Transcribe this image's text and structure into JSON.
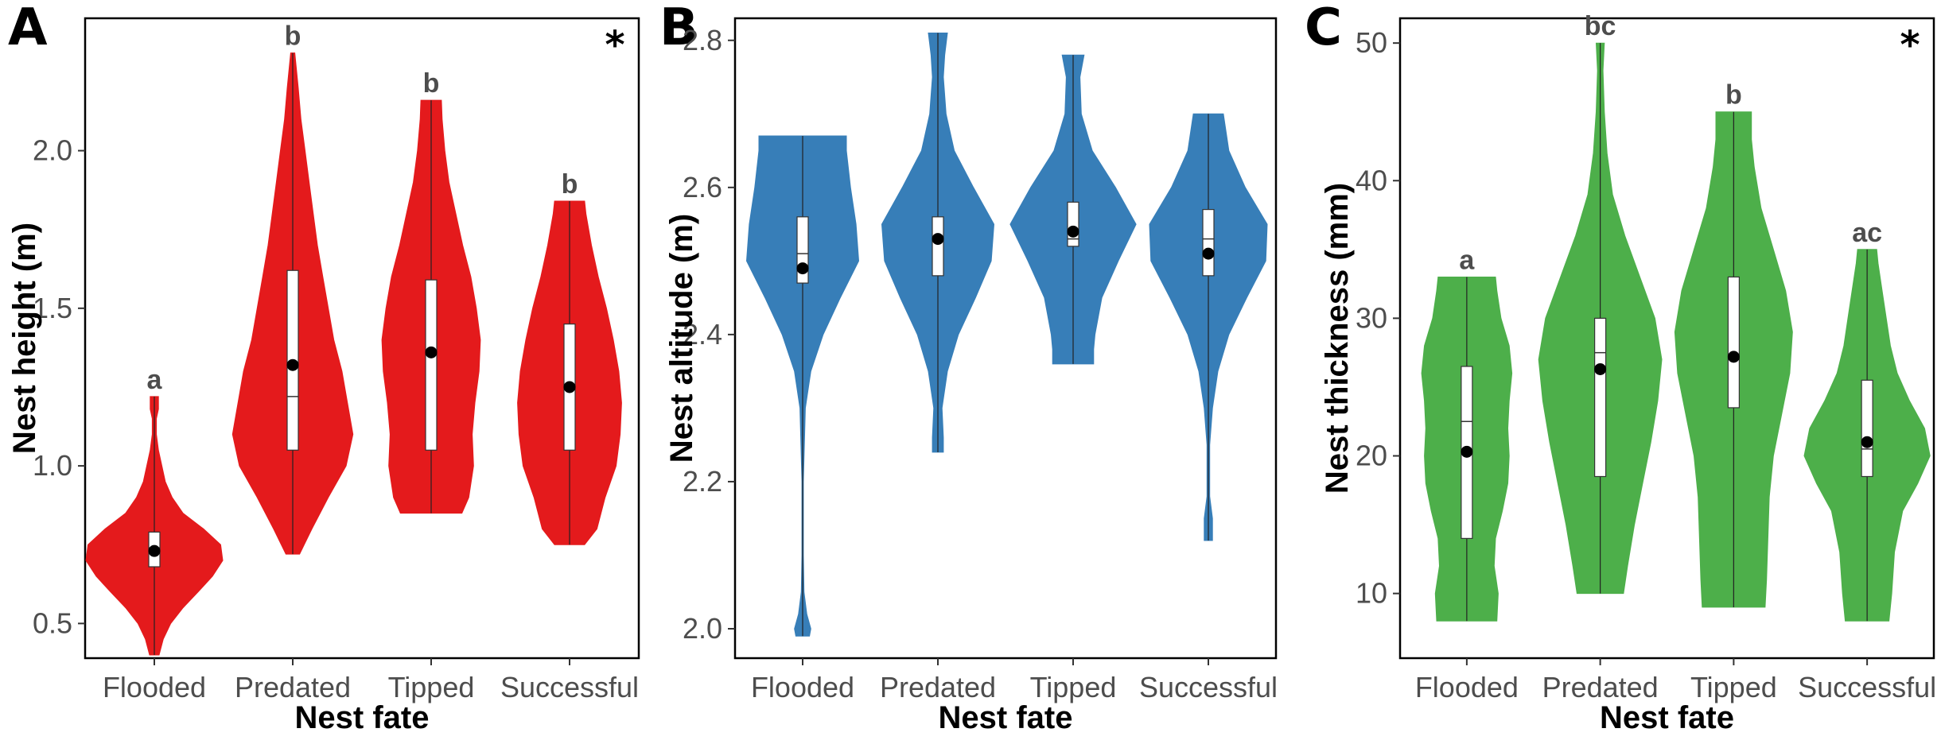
{
  "figure": {
    "panels": [
      "A",
      "B",
      "C"
    ]
  },
  "chart_data": [
    {
      "panel_label": "A",
      "type": "violin",
      "color": "#e41a1c",
      "xlabel": "Nest fate",
      "ylabel": "Nest height (m)",
      "categories": [
        "Flooded",
        "Predated",
        "Tipped",
        "Successful"
      ],
      "ylim": [
        0.39,
        2.42
      ],
      "yticks": [
        0.5,
        1.0,
        1.5,
        2.0
      ],
      "ytick_labels": [
        "0.5",
        "1.0",
        "1.5",
        "2.0"
      ],
      "significance_letters": [
        "a",
        "b",
        "b",
        "b"
      ],
      "overall_significance": "*",
      "groups": [
        {
          "name": "Flooded",
          "min": 0.4,
          "max": 1.22,
          "q1": 0.68,
          "median": 0.74,
          "q3": 0.79,
          "mean": 0.73,
          "density": [
            [
              0.4,
              0.07
            ],
            [
              0.45,
              0.13
            ],
            [
              0.5,
              0.24
            ],
            [
              0.55,
              0.42
            ],
            [
              0.6,
              0.64
            ],
            [
              0.65,
              0.85
            ],
            [
              0.7,
              1.0
            ],
            [
              0.75,
              0.97
            ],
            [
              0.8,
              0.72
            ],
            [
              0.85,
              0.42
            ],
            [
              0.9,
              0.26
            ],
            [
              0.95,
              0.16
            ],
            [
              1.0,
              0.11
            ],
            [
              1.05,
              0.06
            ],
            [
              1.1,
              0.03
            ],
            [
              1.15,
              0.03
            ],
            [
              1.18,
              0.06
            ],
            [
              1.22,
              0.06
            ]
          ]
        },
        {
          "name": "Predated",
          "min": 0.72,
          "max": 2.31,
          "q1": 1.05,
          "median": 1.22,
          "q3": 1.62,
          "mean": 1.32,
          "density": [
            [
              0.72,
              0.1
            ],
            [
              0.8,
              0.28
            ],
            [
              0.9,
              0.52
            ],
            [
              1.0,
              0.78
            ],
            [
              1.1,
              0.88
            ],
            [
              1.2,
              0.8
            ],
            [
              1.3,
              0.72
            ],
            [
              1.4,
              0.6
            ],
            [
              1.5,
              0.52
            ],
            [
              1.6,
              0.44
            ],
            [
              1.7,
              0.36
            ],
            [
              1.8,
              0.3
            ],
            [
              1.9,
              0.24
            ],
            [
              2.0,
              0.18
            ],
            [
              2.1,
              0.12
            ],
            [
              2.2,
              0.08
            ],
            [
              2.31,
              0.03
            ]
          ]
        },
        {
          "name": "Tipped",
          "min": 0.85,
          "max": 2.16,
          "q1": 1.05,
          "median": 1.36,
          "q3": 1.59,
          "mean": 1.36,
          "density": [
            [
              0.85,
              0.45
            ],
            [
              0.9,
              0.55
            ],
            [
              1.0,
              0.62
            ],
            [
              1.1,
              0.6
            ],
            [
              1.2,
              0.64
            ],
            [
              1.3,
              0.7
            ],
            [
              1.4,
              0.72
            ],
            [
              1.5,
              0.66
            ],
            [
              1.6,
              0.58
            ],
            [
              1.7,
              0.46
            ],
            [
              1.8,
              0.36
            ],
            [
              1.9,
              0.26
            ],
            [
              2.0,
              0.2
            ],
            [
              2.1,
              0.16
            ],
            [
              2.16,
              0.15
            ]
          ]
        },
        {
          "name": "Successful",
          "min": 0.75,
          "max": 1.84,
          "q1": 1.05,
          "median": 1.25,
          "q3": 1.45,
          "mean": 1.25,
          "density": [
            [
              0.75,
              0.22
            ],
            [
              0.8,
              0.4
            ],
            [
              0.9,
              0.52
            ],
            [
              1.0,
              0.68
            ],
            [
              1.1,
              0.74
            ],
            [
              1.2,
              0.76
            ],
            [
              1.3,
              0.72
            ],
            [
              1.4,
              0.64
            ],
            [
              1.5,
              0.54
            ],
            [
              1.6,
              0.42
            ],
            [
              1.7,
              0.32
            ],
            [
              1.8,
              0.24
            ],
            [
              1.84,
              0.22
            ]
          ]
        }
      ]
    },
    {
      "panel_label": "B",
      "type": "violin",
      "color": "#377eb8",
      "xlabel": "Nest fate",
      "ylabel": "Nest altitude (m)",
      "categories": [
        "Flooded",
        "Predated",
        "Tipped",
        "Successful"
      ],
      "ylim": [
        1.96,
        2.83
      ],
      "yticks": [
        2.0,
        2.2,
        2.4,
        2.6,
        2.8
      ],
      "ytick_labels": [
        "2.0",
        "2.2",
        "2.4",
        "2.6",
        "2.8"
      ],
      "significance_letters": [
        "",
        "",
        "",
        ""
      ],
      "overall_significance": "",
      "groups": [
        {
          "name": "Flooded",
          "min": 1.99,
          "max": 2.67,
          "q1": 2.47,
          "median": 2.51,
          "q3": 2.56,
          "mean": 2.49,
          "density": [
            [
              1.99,
              0.1
            ],
            [
              2.0,
              0.12
            ],
            [
              2.02,
              0.06
            ],
            [
              2.05,
              0.02
            ],
            [
              2.1,
              0.01
            ],
            [
              2.2,
              0.01
            ],
            [
              2.3,
              0.04
            ],
            [
              2.35,
              0.12
            ],
            [
              2.4,
              0.3
            ],
            [
              2.45,
              0.55
            ],
            [
              2.5,
              0.82
            ],
            [
              2.55,
              0.78
            ],
            [
              2.6,
              0.7
            ],
            [
              2.65,
              0.64
            ],
            [
              2.67,
              0.64
            ]
          ]
        },
        {
          "name": "Predated",
          "min": 2.24,
          "max": 2.81,
          "q1": 2.48,
          "median": 2.53,
          "q3": 2.56,
          "mean": 2.53,
          "density": [
            [
              2.24,
              0.08
            ],
            [
              2.26,
              0.08
            ],
            [
              2.3,
              0.06
            ],
            [
              2.35,
              0.14
            ],
            [
              2.4,
              0.3
            ],
            [
              2.45,
              0.55
            ],
            [
              2.5,
              0.78
            ],
            [
              2.55,
              0.82
            ],
            [
              2.6,
              0.52
            ],
            [
              2.65,
              0.24
            ],
            [
              2.7,
              0.12
            ],
            [
              2.75,
              0.08
            ],
            [
              2.78,
              0.1
            ],
            [
              2.81,
              0.14
            ]
          ]
        },
        {
          "name": "Tipped",
          "min": 2.36,
          "max": 2.78,
          "q1": 2.52,
          "median": 2.53,
          "q3": 2.58,
          "mean": 2.54,
          "density": [
            [
              2.36,
              0.3
            ],
            [
              2.38,
              0.3
            ],
            [
              2.4,
              0.32
            ],
            [
              2.45,
              0.42
            ],
            [
              2.5,
              0.66
            ],
            [
              2.55,
              0.92
            ],
            [
              2.6,
              0.62
            ],
            [
              2.65,
              0.28
            ],
            [
              2.7,
              0.12
            ],
            [
              2.75,
              0.1
            ],
            [
              2.78,
              0.16
            ]
          ]
        },
        {
          "name": "Successful",
          "min": 2.12,
          "max": 2.7,
          "q1": 2.48,
          "median": 2.53,
          "q3": 2.57,
          "mean": 2.51,
          "density": [
            [
              2.12,
              0.06
            ],
            [
              2.15,
              0.06
            ],
            [
              2.18,
              0.02
            ],
            [
              2.25,
              0.02
            ],
            [
              2.3,
              0.06
            ],
            [
              2.35,
              0.14
            ],
            [
              2.4,
              0.3
            ],
            [
              2.45,
              0.56
            ],
            [
              2.5,
              0.84
            ],
            [
              2.55,
              0.86
            ],
            [
              2.6,
              0.54
            ],
            [
              2.65,
              0.3
            ],
            [
              2.7,
              0.22
            ]
          ]
        }
      ]
    },
    {
      "panel_label": "C",
      "type": "violin",
      "color": "#4daf4a",
      "xlabel": "Nest fate",
      "ylabel": "Nest thickness (mm)",
      "categories": [
        "Flooded",
        "Predated",
        "Tipped",
        "Successful"
      ],
      "ylim": [
        5.3,
        51.8
      ],
      "yticks": [
        10,
        20,
        30,
        40,
        50
      ],
      "ytick_labels": [
        "10",
        "20",
        "30",
        "40",
        "50"
      ],
      "significance_letters": [
        "a",
        "bc",
        "b",
        "ac"
      ],
      "overall_significance": "*",
      "groups": [
        {
          "name": "Flooded",
          "min": 8.0,
          "max": 33.0,
          "q1": 14.0,
          "median": 22.5,
          "q3": 26.5,
          "mean": 20.3,
          "density": [
            [
              8.0,
              0.44
            ],
            [
              10.0,
              0.46
            ],
            [
              12.0,
              0.4
            ],
            [
              14.0,
              0.42
            ],
            [
              16.0,
              0.52
            ],
            [
              18.0,
              0.6
            ],
            [
              20.0,
              0.62
            ],
            [
              22.0,
              0.6
            ],
            [
              24.0,
              0.62
            ],
            [
              26.0,
              0.66
            ],
            [
              28.0,
              0.62
            ],
            [
              30.0,
              0.5
            ],
            [
              32.0,
              0.44
            ],
            [
              33.0,
              0.42
            ]
          ]
        },
        {
          "name": "Predated",
          "min": 10.0,
          "max": 50.0,
          "q1": 18.5,
          "median": 27.5,
          "q3": 30.0,
          "mean": 26.3,
          "density": [
            [
              10.0,
              0.34
            ],
            [
              12.0,
              0.4
            ],
            [
              15.0,
              0.5
            ],
            [
              18.0,
              0.62
            ],
            [
              21.0,
              0.74
            ],
            [
              24.0,
              0.84
            ],
            [
              27.0,
              0.9
            ],
            [
              30.0,
              0.8
            ],
            [
              33.0,
              0.58
            ],
            [
              36.0,
              0.36
            ],
            [
              39.0,
              0.18
            ],
            [
              42.0,
              0.1
            ],
            [
              45.0,
              0.06
            ],
            [
              48.0,
              0.04
            ],
            [
              50.0,
              0.06
            ]
          ]
        },
        {
          "name": "Tipped",
          "min": 9.0,
          "max": 45.0,
          "q1": 23.5,
          "median": 27.0,
          "q3": 33.0,
          "mean": 27.2,
          "density": [
            [
              9.0,
              0.46
            ],
            [
              11.0,
              0.48
            ],
            [
              14.0,
              0.5
            ],
            [
              17.0,
              0.52
            ],
            [
              20.0,
              0.58
            ],
            [
              23.0,
              0.7
            ],
            [
              26.0,
              0.82
            ],
            [
              29.0,
              0.86
            ],
            [
              32.0,
              0.76
            ],
            [
              35.0,
              0.58
            ],
            [
              38.0,
              0.4
            ],
            [
              41.0,
              0.3
            ],
            [
              43.0,
              0.26
            ],
            [
              45.0,
              0.26
            ]
          ]
        },
        {
          "name": "Successful",
          "min": 8.0,
          "max": 35.0,
          "q1": 18.5,
          "median": 20.5,
          "q3": 25.5,
          "mean": 21.0,
          "density": [
            [
              8.0,
              0.32
            ],
            [
              10.0,
              0.36
            ],
            [
              13.0,
              0.4
            ],
            [
              16.0,
              0.52
            ],
            [
              18.0,
              0.74
            ],
            [
              20.0,
              0.92
            ],
            [
              22.0,
              0.84
            ],
            [
              24.0,
              0.62
            ],
            [
              26.0,
              0.44
            ],
            [
              28.0,
              0.34
            ],
            [
              30.0,
              0.28
            ],
            [
              32.0,
              0.22
            ],
            [
              34.0,
              0.16
            ],
            [
              35.0,
              0.14
            ]
          ]
        }
      ]
    }
  ]
}
